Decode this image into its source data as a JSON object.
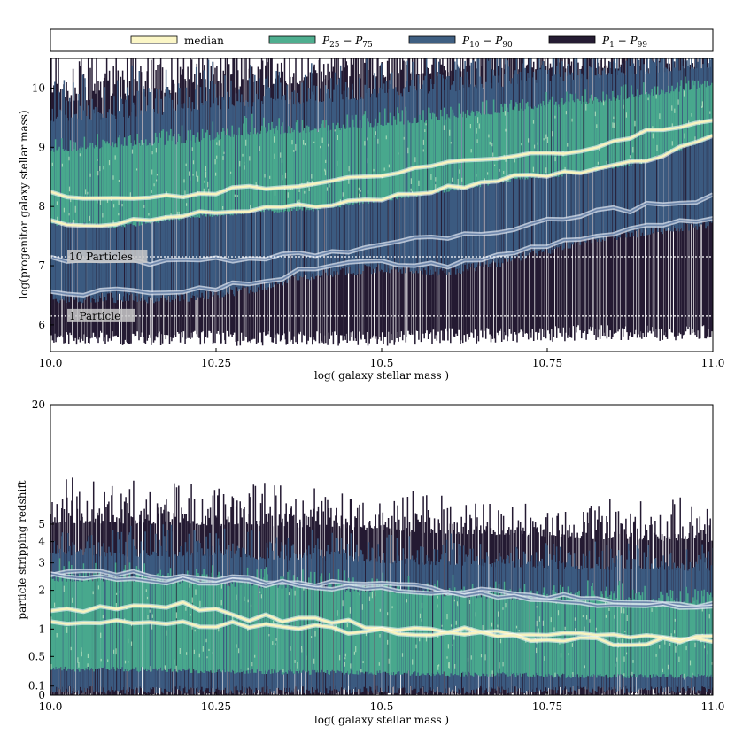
{
  "legend": {
    "entries": [
      {
        "label": "median",
        "color": "#fbf6c6"
      },
      {
        "label": "P25 − P75",
        "base": "P",
        "sub1": "25",
        "sep": " − P",
        "sub2": "75",
        "color": "#4fae8f"
      },
      {
        "label": "P10 − P90",
        "base": "P",
        "sub1": "10",
        "sep": " − P",
        "sub2": "90",
        "color": "#3f5f82"
      },
      {
        "label": "P1 − P99",
        "base": "P",
        "sub1": "1",
        "sep": " − P",
        "sub2": "99",
        "color": "#251c33"
      }
    ]
  },
  "colors": {
    "p1_99": "#241a32",
    "p10_90": "#3b5a80",
    "p25_75": "#48a88d",
    "median": "#f8f3c1",
    "guide": "#ffffff"
  },
  "chart_data": [
    {
      "type": "area",
      "title": "",
      "xlabel": "log( galaxy stellar mass )",
      "ylabel": "log(progenitor galaxy stellar mass)",
      "xlim": [
        10.0,
        11.0
      ],
      "ylim": [
        5.55,
        10.5
      ],
      "yscale": "linear",
      "xticks": [
        {
          "value": 10.0,
          "label": "10.0"
        },
        {
          "value": 10.25,
          "label": "10.25"
        },
        {
          "value": 10.5,
          "label": "10.5"
        },
        {
          "value": 10.75,
          "label": "10.75"
        },
        {
          "value": 11.0,
          "label": "11.0"
        }
      ],
      "yticks": [
        {
          "value": 6,
          "label": "6"
        },
        {
          "value": 7,
          "label": "7"
        },
        {
          "value": 8,
          "label": "8"
        },
        {
          "value": 9,
          "label": "9"
        },
        {
          "value": 10,
          "label": "10"
        }
      ],
      "reference_lines": [
        {
          "y": 7.15,
          "label": "10 Particles"
        },
        {
          "y": 6.15,
          "label": "1 Particle"
        }
      ],
      "x": [
        10.0,
        10.1,
        10.2,
        10.3,
        10.4,
        10.5,
        10.6,
        10.7,
        10.8,
        10.9,
        11.0
      ],
      "series": [
        {
          "name": "P1",
          "values": [
            5.9,
            5.9,
            5.9,
            5.9,
            5.9,
            5.9,
            5.95,
            5.95,
            6.0,
            6.0,
            6.0
          ]
        },
        {
          "name": "P10",
          "values": [
            6.55,
            6.55,
            6.55,
            6.7,
            6.95,
            7.05,
            7.0,
            7.2,
            7.5,
            7.65,
            7.8
          ]
        },
        {
          "name": "P25",
          "values": [
            7.75,
            7.7,
            7.85,
            7.95,
            8.0,
            8.15,
            8.3,
            8.5,
            8.6,
            8.8,
            9.2
          ]
        },
        {
          "name": "median_upper",
          "values": [
            8.2,
            8.15,
            8.2,
            8.35,
            8.45,
            8.6,
            8.75,
            8.85,
            8.95,
            9.25,
            9.5
          ]
        },
        {
          "name": "P75",
          "values": [
            8.95,
            9.05,
            9.1,
            9.25,
            9.3,
            9.4,
            9.5,
            9.65,
            9.75,
            9.9,
            10.05
          ]
        },
        {
          "name": "P90",
          "values": [
            9.55,
            9.6,
            9.7,
            9.8,
            9.85,
            9.95,
            10.05,
            10.15,
            10.25,
            10.35,
            10.45
          ]
        },
        {
          "name": "P99",
          "values": [
            9.9,
            10.0,
            10.1,
            10.2,
            10.25,
            10.35,
            10.45,
            10.5,
            10.5,
            10.5,
            10.5
          ]
        },
        {
          "name": "P10_upper",
          "values": [
            7.15,
            7.05,
            7.1,
            7.1,
            7.2,
            7.35,
            7.5,
            7.65,
            7.85,
            8.0,
            8.15
          ]
        }
      ],
      "median_lines": [
        {
          "name": "median_a",
          "values": [
            8.2,
            8.15,
            8.2,
            8.3,
            8.35,
            8.55,
            8.75,
            8.85,
            8.95,
            9.25,
            9.5
          ]
        },
        {
          "name": "median_b",
          "values": [
            7.75,
            7.7,
            7.85,
            7.95,
            8.0,
            8.15,
            8.3,
            8.5,
            8.6,
            8.8,
            9.15
          ]
        }
      ],
      "p10_lines": [
        {
          "name": "p10_a",
          "values": [
            7.15,
            7.05,
            7.1,
            7.1,
            7.2,
            7.35,
            7.5,
            7.65,
            7.85,
            8.0,
            8.15
          ]
        },
        {
          "name": "p10_b",
          "values": [
            6.55,
            6.55,
            6.55,
            6.7,
            6.95,
            7.05,
            7.0,
            7.2,
            7.5,
            7.65,
            7.8
          ]
        }
      ]
    },
    {
      "type": "area",
      "title": "",
      "xlabel": "log( galaxy stellar mass )",
      "ylabel": "particle stripping redshift",
      "xlim": [
        10.0,
        11.0
      ],
      "ylim": [
        0,
        20
      ],
      "yscale": "log1p",
      "xticks": [
        {
          "value": 10.0,
          "label": "10.0"
        },
        {
          "value": 10.25,
          "label": "10.25"
        },
        {
          "value": 10.5,
          "label": "10.5"
        },
        {
          "value": 10.75,
          "label": "10.75"
        },
        {
          "value": 11.0,
          "label": "11.0"
        }
      ],
      "yticks": [
        {
          "value": 0,
          "label": "0"
        },
        {
          "value": 0.1,
          "label": "0.1"
        },
        {
          "value": 0.5,
          "label": "0.5"
        },
        {
          "value": 1,
          "label": "1"
        },
        {
          "value": 2,
          "label": "2"
        },
        {
          "value": 3,
          "label": "3"
        },
        {
          "value": 4,
          "label": "4"
        },
        {
          "value": 5,
          "label": "5"
        },
        {
          "value": 20,
          "label": "20"
        }
      ],
      "x": [
        10.0,
        10.1,
        10.2,
        10.3,
        10.4,
        10.5,
        10.6,
        10.7,
        10.8,
        10.9,
        11.0
      ],
      "series": [
        {
          "name": "P1",
          "values": [
            0.02,
            0.02,
            0.02,
            0.02,
            0.02,
            0.02,
            0.02,
            0.02,
            0.02,
            0.02,
            0.02
          ]
        },
        {
          "name": "P10",
          "values": [
            0.1,
            0.1,
            0.1,
            0.1,
            0.1,
            0.1,
            0.1,
            0.1,
            0.1,
            0.1,
            0.1
          ]
        },
        {
          "name": "P25",
          "values": [
            0.35,
            0.35,
            0.33,
            0.32,
            0.3,
            0.3,
            0.28,
            0.27,
            0.25,
            0.25,
            0.25
          ]
        },
        {
          "name": "P75",
          "values": [
            2.4,
            2.4,
            2.3,
            2.2,
            2.1,
            2.0,
            1.9,
            1.8,
            1.8,
            1.7,
            1.7
          ]
        },
        {
          "name": "P90",
          "values": [
            3.6,
            3.5,
            3.5,
            3.4,
            3.3,
            3.2,
            3.1,
            3.0,
            2.9,
            2.9,
            2.8
          ]
        },
        {
          "name": "P99",
          "values": [
            5.5,
            5.5,
            5.4,
            5.3,
            5.2,
            5.0,
            4.8,
            4.7,
            4.5,
            4.4,
            4.3
          ]
        }
      ],
      "median_lines": [
        {
          "name": "median_a",
          "values": [
            1.45,
            1.5,
            1.55,
            1.25,
            1.2,
            1.05,
            1.0,
            0.9,
            0.85,
            0.85,
            0.8
          ]
        },
        {
          "name": "median_b",
          "values": [
            1.15,
            1.2,
            1.15,
            1.05,
            1.0,
            0.95,
            0.9,
            0.85,
            0.8,
            0.72,
            0.9
          ]
        }
      ],
      "p10_lines": [
        {
          "name": "p10_a",
          "values": [
            2.6,
            2.6,
            2.4,
            2.35,
            2.25,
            2.2,
            2.0,
            1.9,
            1.75,
            1.6,
            1.6
          ]
        },
        {
          "name": "p10_b",
          "values": [
            2.5,
            2.45,
            2.3,
            2.25,
            2.15,
            2.05,
            1.95,
            1.8,
            1.65,
            1.55,
            1.5
          ]
        }
      ]
    }
  ]
}
